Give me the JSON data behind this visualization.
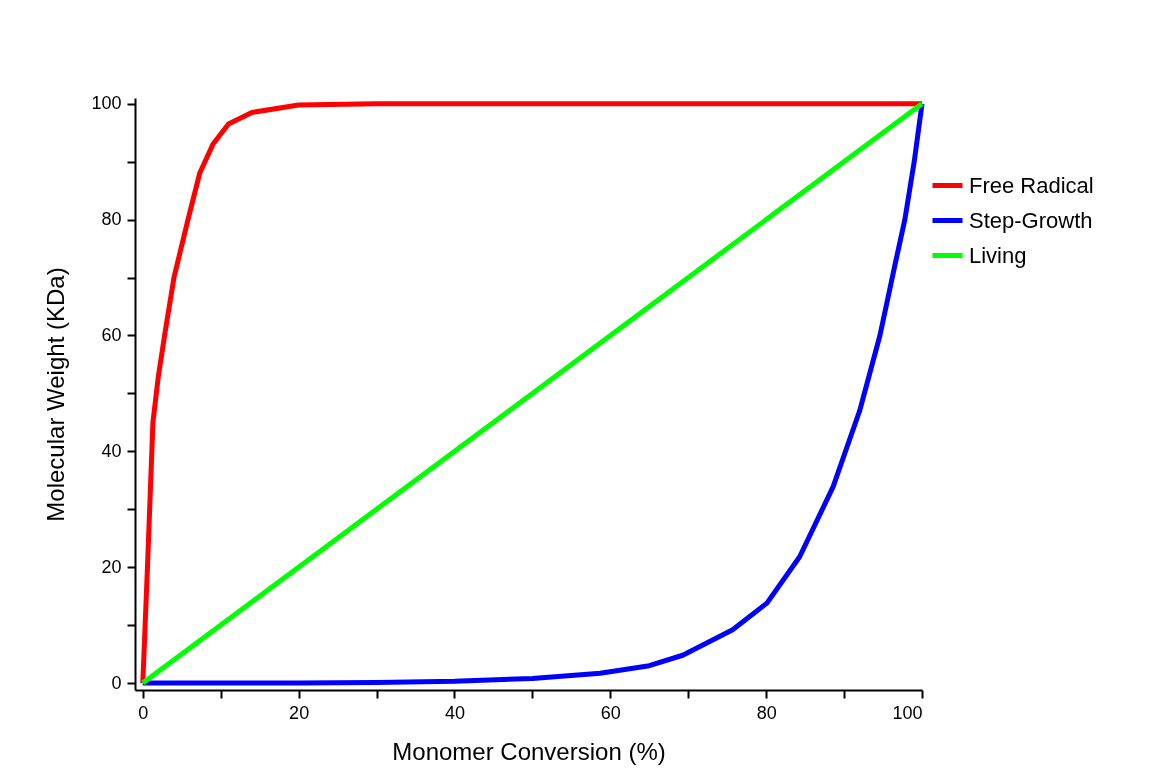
{
  "chart_data": {
    "type": "line",
    "xlabel": "Monomer Conversion (%)",
    "ylabel": "Molecular Weight (KDa)",
    "xlim": [
      -1,
      100
    ],
    "ylim": [
      -1.2,
      101
    ],
    "xticks": [
      0,
      {
        "value": 10,
        "label": null
      },
      20,
      {
        "value": 30,
        "label": null
      },
      40,
      {
        "value": 50,
        "label": null
      },
      60,
      {
        "value": 70,
        "label": null
      },
      80,
      {
        "value": 90,
        "label": null
      },
      100
    ],
    "yticks": [
      0,
      {
        "value": 10,
        "label": null
      },
      20,
      {
        "value": 30,
        "label": null
      },
      40,
      {
        "value": 50,
        "label": null
      },
      60,
      {
        "value": 70,
        "label": null
      },
      80,
      {
        "value": 90,
        "label": null
      },
      100
    ],
    "grid": false,
    "legend": "right",
    "line_style": "solid",
    "marker": "none",
    "series": [
      {
        "name": "Free Radical",
        "color": "#ff0000",
        "x": [
          0,
          0.6,
          1.3,
          2,
          2.8,
          4,
          5.8,
          7.3,
          9,
          11,
          14,
          20,
          30,
          100
        ],
        "values": [
          0,
          20,
          45,
          53,
          60,
          70,
          80,
          88,
          93,
          96.5,
          98.5,
          99.8,
          100,
          100
        ]
      },
      {
        "name": "Step-Growth",
        "color": "#0000ff",
        "x": [
          0,
          20,
          30,
          40,
          50,
          58.7,
          65,
          69.3,
          75.7,
          80.1,
          84.3,
          88.6,
          92,
          94.6,
          96.5,
          97.8,
          99,
          100
        ],
        "values": [
          0,
          0,
          0.1,
          0.3,
          0.8,
          1.7,
          3,
          4.8,
          9.2,
          13.8,
          21.8,
          33.9,
          47,
          60,
          72,
          80,
          90,
          100
        ]
      },
      {
        "name": "Living",
        "color": "#00ff00",
        "x": [
          0,
          100
        ],
        "values": [
          0,
          100
        ]
      }
    ]
  }
}
